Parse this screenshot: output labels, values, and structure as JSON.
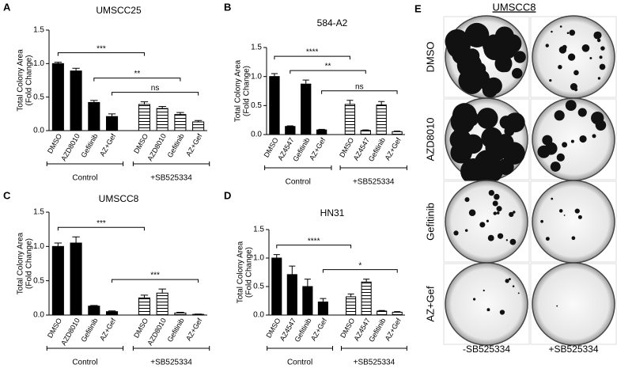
{
  "chart_data": [
    {
      "type": "bar",
      "panel": "A",
      "title": "UMSCC25",
      "ylabel": [
        "Total Colony Area",
        "(Fold Change)"
      ],
      "categories": [
        "DMSO",
        "AZD8010",
        "Gefitinib",
        "AZ+Gef",
        "DMSO",
        "AZD8010",
        "Gefitinib",
        "AZ+Gef"
      ],
      "values": [
        1.0,
        0.89,
        0.42,
        0.21,
        0.39,
        0.33,
        0.24,
        0.13
      ],
      "errors": [
        0.02,
        0.04,
        0.03,
        0.04,
        0.04,
        0.03,
        0.03,
        0.02
      ],
      "ylim": [
        0,
        1.5
      ],
      "yticks": [
        {
          "value": 0,
          "label": "0.0"
        },
        {
          "value": 0.5,
          "label": "0.5"
        },
        {
          "value": 1,
          "label": "1.0"
        },
        {
          "value": 1.5,
          "label": "1.5"
        }
      ],
      "groups": [
        {
          "label": "Control",
          "span": [
            0,
            3
          ]
        },
        {
          "label": "+SB525334",
          "span": [
            4,
            7
          ]
        }
      ],
      "brackets": [
        {
          "label": "***",
          "span": [
            0,
            4
          ]
        },
        {
          "label": "**",
          "span": [
            2,
            6
          ]
        },
        {
          "label": "ns",
          "span": [
            3,
            7
          ]
        }
      ]
    },
    {
      "type": "bar",
      "panel": "B",
      "title": "584-A2",
      "ylabel": [
        "Total Colony Area",
        "(Fold Change)"
      ],
      "categories": [
        "DMSO",
        "AZ4547",
        "Gefitinib",
        "AZ+Gef",
        "DMSO",
        "AZ4547",
        "Gefitinib",
        "AZ+Gef"
      ],
      "values": [
        1.0,
        0.14,
        0.87,
        0.08,
        0.52,
        0.07,
        0.51,
        0.05
      ],
      "errors": [
        0.05,
        0.01,
        0.07,
        0.01,
        0.07,
        0.01,
        0.06,
        0.01
      ],
      "ylim": [
        0,
        1.5
      ],
      "yticks": [
        {
          "value": 0,
          "label": "0.0"
        },
        {
          "value": 0.5,
          "label": "0.5"
        },
        {
          "value": 1,
          "label": "1.0"
        },
        {
          "value": 1.5,
          "label": "1.5"
        }
      ],
      "groups": [
        {
          "label": "Control",
          "span": [
            0,
            3
          ]
        },
        {
          "label": "+SB525334",
          "span": [
            4,
            7
          ]
        }
      ],
      "brackets": [
        {
          "label": "****",
          "span": [
            0,
            4
          ]
        },
        {
          "label": "**",
          "span": [
            1,
            5
          ]
        },
        {
          "label": "ns",
          "span": [
            3,
            7
          ]
        }
      ]
    },
    {
      "type": "bar",
      "panel": "C",
      "title": "UMSCC8",
      "ylabel": [
        "Total Colony Area",
        "(Fold Change)"
      ],
      "categories": [
        "DMSO",
        "AZD8010",
        "Gefitinib",
        "AZ+Gef",
        "DMSO",
        "AZD8010",
        "Gefitinib",
        "AZ+Gef"
      ],
      "values": [
        1.0,
        1.05,
        0.13,
        0.05,
        0.25,
        0.32,
        0.03,
        0.01
      ],
      "errors": [
        0.05,
        0.09,
        0.01,
        0.01,
        0.04,
        0.06,
        0.01,
        0.005
      ],
      "ylim": [
        0,
        1.5
      ],
      "yticks": [
        {
          "value": 0,
          "label": "0.0"
        },
        {
          "value": 0.5,
          "label": "0.5"
        },
        {
          "value": 1,
          "label": "1.0"
        },
        {
          "value": 1.5,
          "label": "1.5"
        }
      ],
      "groups": [
        {
          "label": "Control",
          "span": [
            0,
            3
          ]
        },
        {
          "label": "+SB525334",
          "span": [
            4,
            7
          ]
        }
      ],
      "brackets": [
        {
          "label": "***",
          "span": [
            0,
            4
          ]
        },
        {
          "label": "***",
          "span": [
            3,
            7
          ]
        }
      ]
    },
    {
      "type": "bar",
      "panel": "D",
      "title": "HN31",
      "ylabel": [
        "Total Colony Area",
        "(Fold Change)"
      ],
      "categories": [
        "DMSO",
        "AZ4547",
        "Gefitinib",
        "AZ+Gef",
        "DMSO",
        "AZ4547",
        "Gefitinib",
        "AZ+Gef"
      ],
      "values": [
        1.0,
        0.71,
        0.5,
        0.23,
        0.32,
        0.58,
        0.07,
        0.05
      ],
      "errors": [
        0.06,
        0.15,
        0.13,
        0.06,
        0.05,
        0.05,
        0.01,
        0.01
      ],
      "ylim": [
        0,
        1.5
      ],
      "yticks": [
        {
          "value": 0,
          "label": "0.0"
        },
        {
          "value": 0.5,
          "label": "0.5"
        },
        {
          "value": 1,
          "label": "1.0"
        },
        {
          "value": 1.5,
          "label": "1.5"
        }
      ],
      "groups": [
        {
          "label": "Control",
          "span": [
            0,
            3
          ]
        },
        {
          "label": "+SB525334",
          "span": [
            4,
            7
          ]
        }
      ],
      "brackets": [
        {
          "label": "****",
          "span": [
            0,
            4
          ]
        },
        {
          "label": "*",
          "span": [
            3,
            7
          ]
        }
      ]
    }
  ],
  "panel_e": {
    "panel": "E",
    "title": "UMSCC8",
    "rows": [
      "DMSO",
      "AZD8010",
      "Gefitinib",
      "AZ+Gef"
    ],
    "columns": [
      "-SB525334",
      "+SB525334"
    ]
  }
}
